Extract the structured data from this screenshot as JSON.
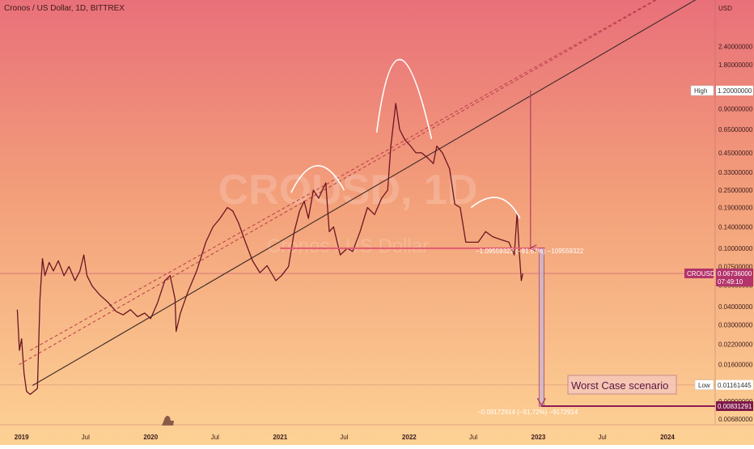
{
  "header": {
    "title": "Cronos / US Dollar, 1D, BITTREX"
  },
  "watermark": {
    "symbol": "CROUSD, 1D",
    "name": "Cronos / US Dollar"
  },
  "colors": {
    "bg_top": "#e9707a",
    "bg_mid": "#f3a07a",
    "bg_bottom": "#fdd295",
    "price_line": "#6a1622",
    "trend_line": "#3a2a28",
    "dashed_channel": "#b93a4a",
    "neckline": "#e05a70",
    "arrow": "#b0405e",
    "worst_line": "#8e1a52",
    "curve": "#ffffff",
    "current_label": "#b3336a",
    "worst_label": "#7d184a"
  },
  "chart_data": {
    "type": "line",
    "title": "Cronos / US Dollar, 1D, BITTREX",
    "xlabel": "",
    "ylabel": "USD",
    "y_scale": "log",
    "ylim": [
      0.0062,
      5.0
    ],
    "xlim": [
      "2018-11-01",
      "2024-05-15"
    ],
    "x_ticks": [
      {
        "label": "2019",
        "date": "2019-01-01"
      },
      {
        "label": "Jul",
        "date": "2019-07-01"
      },
      {
        "label": "2020",
        "date": "2020-01-01"
      },
      {
        "label": "Jul",
        "date": "2020-07-01"
      },
      {
        "label": "2021",
        "date": "2021-01-01"
      },
      {
        "label": "Jul",
        "date": "2021-07-01"
      },
      {
        "label": "2022",
        "date": "2022-01-01"
      },
      {
        "label": "Jul",
        "date": "2022-07-01"
      },
      {
        "label": "2023",
        "date": "2023-01-01"
      },
      {
        "label": "Jul",
        "date": "2023-07-01"
      },
      {
        "label": "2024",
        "date": "2024-01-01"
      }
    ],
    "y_ticks": [
      {
        "label": "2.40000000",
        "value": 2.4
      },
      {
        "label": "1.80000000",
        "value": 1.8
      },
      {
        "label": "0.90000000",
        "value": 0.9
      },
      {
        "label": "0.65000000",
        "value": 0.65
      },
      {
        "label": "0.45000000",
        "value": 0.45
      },
      {
        "label": "0.33000000",
        "value": 0.33
      },
      {
        "label": "0.25000000",
        "value": 0.25
      },
      {
        "label": "0.19000000",
        "value": 0.19
      },
      {
        "label": "0.14000000",
        "value": 0.14
      },
      {
        "label": "0.10000000",
        "value": 0.1
      },
      {
        "label": "0.07500000",
        "value": 0.075
      },
      {
        "label": "0.05600000",
        "value": 0.056
      },
      {
        "label": "0.04000000",
        "value": 0.04
      },
      {
        "label": "0.03000000",
        "value": 0.03
      },
      {
        "label": "0.02200000",
        "value": 0.022
      },
      {
        "label": "0.01600000",
        "value": 0.016
      },
      {
        "label": "0.00900000",
        "value": 0.009
      },
      {
        "label": "0.00680000",
        "value": 0.0068
      }
    ],
    "series": [
      {
        "values": [
          [
            "2018-12-20",
            0.038
          ],
          [
            "2018-12-26",
            0.02
          ],
          [
            "2019-01-01",
            0.024
          ],
          [
            "2019-01-08",
            0.014
          ],
          [
            "2019-01-15",
            0.0105
          ],
          [
            "2019-01-25",
            0.01
          ],
          [
            "2019-02-05",
            0.0105
          ],
          [
            "2019-02-15",
            0.011
          ],
          [
            "2019-02-22",
            0.045
          ],
          [
            "2019-03-01",
            0.085
          ],
          [
            "2019-03-08",
            0.065
          ],
          [
            "2019-03-20",
            0.08
          ],
          [
            "2019-04-01",
            0.07
          ],
          [
            "2019-04-15",
            0.082
          ],
          [
            "2019-05-01",
            0.065
          ],
          [
            "2019-05-15",
            0.075
          ],
          [
            "2019-06-01",
            0.06
          ],
          [
            "2019-06-15",
            0.07
          ],
          [
            "2019-06-26",
            0.09
          ],
          [
            "2019-07-05",
            0.065
          ],
          [
            "2019-07-20",
            0.055
          ],
          [
            "2019-08-10",
            0.048
          ],
          [
            "2019-09-01",
            0.043
          ],
          [
            "2019-09-25",
            0.037
          ],
          [
            "2019-10-15",
            0.035
          ],
          [
            "2019-11-05",
            0.038
          ],
          [
            "2019-11-25",
            0.034
          ],
          [
            "2019-12-15",
            0.036
          ],
          [
            "2020-01-01",
            0.033
          ],
          [
            "2020-01-20",
            0.042
          ],
          [
            "2020-02-10",
            0.06
          ],
          [
            "2020-02-25",
            0.065
          ],
          [
            "2020-03-10",
            0.045
          ],
          [
            "2020-03-13",
            0.027
          ],
          [
            "2020-03-25",
            0.036
          ],
          [
            "2020-04-15",
            0.05
          ],
          [
            "2020-05-10",
            0.07
          ],
          [
            "2020-06-05",
            0.11
          ],
          [
            "2020-06-25",
            0.14
          ],
          [
            "2020-07-15",
            0.16
          ],
          [
            "2020-08-05",
            0.19
          ],
          [
            "2020-08-20",
            0.18
          ],
          [
            "2020-09-05",
            0.15
          ],
          [
            "2020-09-25",
            0.11
          ],
          [
            "2020-10-15",
            0.082
          ],
          [
            "2020-11-05",
            0.068
          ],
          [
            "2020-11-25",
            0.076
          ],
          [
            "2020-12-20",
            0.06
          ],
          [
            "2021-01-05",
            0.065
          ],
          [
            "2021-01-25",
            0.075
          ],
          [
            "2021-02-10",
            0.13
          ],
          [
            "2021-02-25",
            0.18
          ],
          [
            "2021-03-10",
            0.21
          ],
          [
            "2021-03-22",
            0.16
          ],
          [
            "2021-04-05",
            0.25
          ],
          [
            "2021-04-20",
            0.22
          ],
          [
            "2021-05-10",
            0.28
          ],
          [
            "2021-05-20",
            0.13
          ],
          [
            "2021-06-01",
            0.14
          ],
          [
            "2021-06-20",
            0.09
          ],
          [
            "2021-07-10",
            0.1
          ],
          [
            "2021-07-25",
            0.095
          ],
          [
            "2021-08-15",
            0.13
          ],
          [
            "2021-09-05",
            0.19
          ],
          [
            "2021-09-25",
            0.17
          ],
          [
            "2021-10-15",
            0.22
          ],
          [
            "2021-11-01",
            0.25
          ],
          [
            "2021-11-10",
            0.5
          ],
          [
            "2021-11-24",
            0.98
          ],
          [
            "2021-12-05",
            0.65
          ],
          [
            "2021-12-20",
            0.55
          ],
          [
            "2022-01-05",
            0.5
          ],
          [
            "2022-01-20",
            0.45
          ],
          [
            "2022-02-05",
            0.45
          ],
          [
            "2022-02-20",
            0.42
          ],
          [
            "2022-03-10",
            0.38
          ],
          [
            "2022-03-20",
            0.5
          ],
          [
            "2022-04-05",
            0.45
          ],
          [
            "2022-04-25",
            0.35
          ],
          [
            "2022-05-10",
            0.2
          ],
          [
            "2022-05-25",
            0.19
          ],
          [
            "2022-06-10",
            0.11
          ],
          [
            "2022-06-25",
            0.11
          ],
          [
            "2022-07-15",
            0.11
          ],
          [
            "2022-08-05",
            0.13
          ],
          [
            "2022-08-25",
            0.12
          ],
          [
            "2022-09-15",
            0.115
          ],
          [
            "2022-10-10",
            0.11
          ],
          [
            "2022-10-25",
            0.09
          ],
          [
            "2022-11-02",
            0.175
          ],
          [
            "2022-11-08",
            0.095
          ],
          [
            "2022-11-14",
            0.06
          ],
          [
            "2022-11-18",
            0.0673
          ]
        ]
      }
    ],
    "trendline": [
      [
        "2019-02-01",
        0.0115
      ],
      [
        "2024-05-15",
        6.0
      ]
    ],
    "channel_top": [
      [
        "2018-12-25",
        0.016
      ],
      [
        "2024-05-15",
        8.5
      ]
    ],
    "channel_mid": [
      [
        "2019-01-25",
        0.02
      ],
      [
        "2024-05-15",
        8.5
      ]
    ],
    "neckline": [
      [
        "2021-01-01",
        0.1
      ],
      [
        "2023-01-20",
        0.1
      ]
    ],
    "target_arrow": {
      "x": "2022-12-10",
      "from": 1.2,
      "to": 0.1
    },
    "worst_case_arrow": {
      "x": "2023-01-10",
      "from": 0.1,
      "to": 0.0083
    },
    "worst_case_level": [
      [
        "2023-01-10",
        0.00831291
      ],
      [
        "2024-05-15",
        0.00831291
      ]
    ],
    "low_level": 0.01161445,
    "high_level": 1.2,
    "current_price": 0.0673,
    "measurement_1": "−1.09559322 (−91.67%) −109559322",
    "measurement_2": "−0.09172914 (−91.72%) −9172914",
    "annotation": "Worst Case scenario",
    "price_labels": {
      "axis_unit": "USD",
      "high_tag": "High",
      "high_value": "1.20000000",
      "low_tag": "Low",
      "low_value": "0.01161445",
      "symbol": "CROUSD",
      "current_value": "0.06736000",
      "countdown": "07:49:10",
      "worst_value": "0.00831291"
    },
    "grid": false,
    "legend": "none"
  }
}
